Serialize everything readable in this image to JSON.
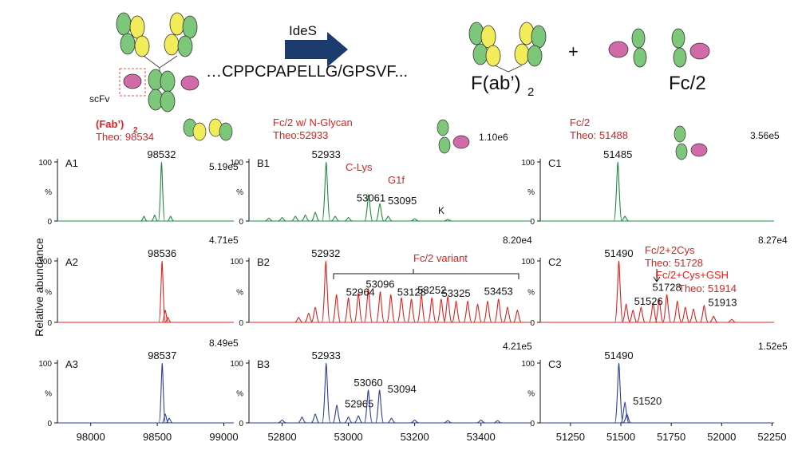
{
  "scheme": {
    "scfv": "scFv",
    "enzyme": "IdeS",
    "sequence": "…CPPCPAPELLG/GPSVF...",
    "product1": "F(ab’)",
    "product1_sub": "2",
    "plus": "+",
    "product2": "Fc/2"
  },
  "y_axis_label": "Relative abundance",
  "yticks": [
    0,
    100
  ],
  "y_unit": "%",
  "columns": [
    {
      "xlim": [
        97750,
        99075
      ],
      "xticks": [
        98000,
        98500,
        99000
      ]
    },
    {
      "xlim": [
        52700,
        53550
      ],
      "xticks": [
        52800,
        53000,
        53200,
        53400
      ]
    },
    {
      "xlim": [
        51100,
        52260
      ],
      "xticks": [
        51250,
        51500,
        51750,
        52000,
        52250
      ]
    }
  ],
  "panels": [
    {
      "id": "A1",
      "color": "#1f8a3c",
      "intensity": "5.19e5",
      "annotations": [
        "(Fab’)",
        "2",
        "Theo: 98534"
      ],
      "labeled": [
        {
          "x": 98532,
          "y": 100
        }
      ],
      "peaks": [
        {
          "x": 98400,
          "y": 8
        },
        {
          "x": 98480,
          "y": 10
        },
        {
          "x": 98600,
          "y": 8
        }
      ]
    },
    {
      "id": "B1",
      "color": "#1f8a3c",
      "intensity": "1.10e6",
      "annotations": [
        "Fc/2 w/ N-Glycan",
        "Theo:52933",
        "C-Lys",
        "G1f",
        "K"
      ],
      "labeled": [
        {
          "x": 52933,
          "y": 100
        },
        {
          "x": 53061,
          "y": 45
        },
        {
          "x": 53095,
          "y": 30
        }
      ],
      "peaks": [
        {
          "x": 52760,
          "y": 5
        },
        {
          "x": 52800,
          "y": 6
        },
        {
          "x": 52840,
          "y": 8
        },
        {
          "x": 52870,
          "y": 10
        },
        {
          "x": 52900,
          "y": 15
        },
        {
          "x": 52960,
          "y": 8
        },
        {
          "x": 53000,
          "y": 6
        },
        {
          "x": 53120,
          "y": 8
        },
        {
          "x": 53200,
          "y": 4
        },
        {
          "x": 53300,
          "y": 3
        }
      ]
    },
    {
      "id": "C1",
      "color": "#1f8a3c",
      "intensity": "3.56e5",
      "annotations": [
        "Fc/2",
        "Theo: 51488"
      ],
      "labeled": [
        {
          "x": 51485,
          "y": 100
        }
      ],
      "peaks": [
        {
          "x": 51520,
          "y": 8
        }
      ]
    },
    {
      "id": "A2",
      "color": "#e02020",
      "intensity": "4.71e5",
      "annotations": [],
      "labeled": [
        {
          "x": 98536,
          "y": 100
        }
      ],
      "peaks": [
        {
          "x": 98560,
          "y": 20
        },
        {
          "x": 98580,
          "y": 8
        }
      ]
    },
    {
      "id": "B2",
      "color": "#e02020",
      "intensity": "8.20e4",
      "annotations": [
        "Fc/2 variant"
      ],
      "labeled": [
        {
          "x": 52932,
          "y": 100
        },
        {
          "x": 52964,
          "y": 45
        },
        {
          "x": 53096,
          "y": 50
        },
        {
          "x": 53128,
          "y": 45
        },
        {
          "x": 53252,
          "y": 40
        },
        {
          "x": 53325,
          "y": 35
        },
        {
          "x": 53453,
          "y": 38
        }
      ],
      "peaks": [
        {
          "x": 52850,
          "y": 8
        },
        {
          "x": 52880,
          "y": 15
        },
        {
          "x": 52900,
          "y": 25
        },
        {
          "x": 53000,
          "y": 40
        },
        {
          "x": 53030,
          "y": 48
        },
        {
          "x": 53060,
          "y": 55
        },
        {
          "x": 53160,
          "y": 40
        },
        {
          "x": 53190,
          "y": 38
        },
        {
          "x": 53220,
          "y": 45
        },
        {
          "x": 53280,
          "y": 38
        },
        {
          "x": 53300,
          "y": 42
        },
        {
          "x": 53360,
          "y": 35
        },
        {
          "x": 53390,
          "y": 30
        },
        {
          "x": 53420,
          "y": 35
        },
        {
          "x": 53480,
          "y": 25
        },
        {
          "x": 53510,
          "y": 20
        }
      ]
    },
    {
      "id": "C2",
      "color": "#e02020",
      "intensity": "8.27e4",
      "annotations": [
        "Fc/2+2Cys",
        "Theo: 51728",
        "Fc/2+Cys+GSH",
        "Theo: 51914"
      ],
      "labeled": [
        {
          "x": 51490,
          "y": 100
        },
        {
          "x": 51526,
          "y": 30
        },
        {
          "x": 51728,
          "y": 45
        },
        {
          "x": 51913,
          "y": 28
        }
      ],
      "peaks": [
        {
          "x": 51560,
          "y": 20
        },
        {
          "x": 51600,
          "y": 25
        },
        {
          "x": 51660,
          "y": 32
        },
        {
          "x": 51690,
          "y": 38
        },
        {
          "x": 51780,
          "y": 35
        },
        {
          "x": 51820,
          "y": 25
        },
        {
          "x": 51860,
          "y": 22
        },
        {
          "x": 51960,
          "y": 10
        },
        {
          "x": 52050,
          "y": 5
        }
      ]
    },
    {
      "id": "A3",
      "color": "#2a3f9a",
      "intensity": "8.49e5",
      "annotations": [],
      "labeled": [
        {
          "x": 98537,
          "y": 100
        }
      ],
      "peaks": [
        {
          "x": 98560,
          "y": 15
        },
        {
          "x": 98590,
          "y": 8
        }
      ]
    },
    {
      "id": "B3",
      "color": "#2a3f9a",
      "intensity": "4.21e5",
      "annotations": [],
      "labeled": [
        {
          "x": 52933,
          "y": 100
        },
        {
          "x": 52965,
          "y": 30
        },
        {
          "x": 53060,
          "y": 55
        },
        {
          "x": 53094,
          "y": 55
        }
      ],
      "peaks": [
        {
          "x": 52800,
          "y": 5
        },
        {
          "x": 52860,
          "y": 10
        },
        {
          "x": 52900,
          "y": 15
        },
        {
          "x": 53000,
          "y": 10
        },
        {
          "x": 53030,
          "y": 12
        },
        {
          "x": 53130,
          "y": 8
        },
        {
          "x": 53200,
          "y": 5
        },
        {
          "x": 53300,
          "y": 4
        },
        {
          "x": 53400,
          "y": 5
        },
        {
          "x": 53450,
          "y": 4
        }
      ]
    },
    {
      "id": "C3",
      "color": "#2a3f9a",
      "intensity": "1.52e5",
      "annotations": [],
      "labeled": [
        {
          "x": 51490,
          "y": 100
        },
        {
          "x": 51520,
          "y": 35
        }
      ],
      "peaks": [
        {
          "x": 51530,
          "y": 15
        }
      ]
    }
  ]
}
